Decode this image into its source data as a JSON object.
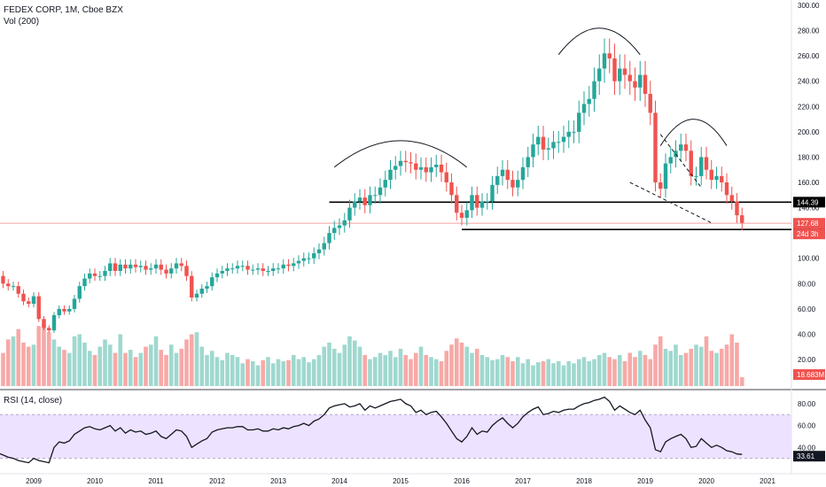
{
  "legend": {
    "symbol_line": "FEDEX CORP, 1M, Cboe BZX",
    "volume_line": "Vol (200)",
    "rsi_line": "RSI (14, close)"
  },
  "colors": {
    "up": "#26a69a",
    "down": "#ef5350",
    "vol_up": "#9fd8cf",
    "vol_down": "#f7a9a7",
    "rsi_band_fill": "#ede2ff",
    "rsi_line": "#131722",
    "level_line": "#000000",
    "price_line": "#f5a0a0"
  },
  "chart_data": [
    {
      "type": "candlestick",
      "title": "FEDEX CORP, 1M, Cboe BZX",
      "x_axis": {
        "tick_labels": [
          "2009",
          "2010",
          "2011",
          "2012",
          "2013",
          "2014",
          "2015",
          "2016",
          "2017",
          "2018",
          "2019",
          "2020",
          "2021"
        ],
        "tick_dates": [
          "2009-01",
          "2010-01",
          "2011-01",
          "2012-01",
          "2013-01",
          "2014-01",
          "2015-01",
          "2016-01",
          "2017-01",
          "2018-01",
          "2019-01",
          "2020-01",
          "2021-01"
        ]
      },
      "y_axis": {
        "ylim": [
          20,
          300
        ],
        "tick_labels": [
          "20.00",
          "40.00",
          "60.00",
          "80.00",
          "100.00",
          "120.00",
          "140.00",
          "160.00",
          "180.00",
          "200.00",
          "220.00",
          "240.00",
          "260.00",
          "280.00",
          "300.00"
        ],
        "tick_values": [
          20,
          40,
          60,
          80,
          100,
          120,
          140,
          160,
          180,
          200,
          220,
          240,
          260,
          280,
          300
        ]
      },
      "start_month": "2008-01",
      "close": [
        92,
        92,
        91,
        90,
        94,
        86,
        80,
        78,
        78,
        72,
        66,
        64,
        70,
        52,
        45,
        43,
        55,
        60,
        58,
        60,
        68,
        78,
        84,
        88,
        86,
        86,
        90,
        96,
        90,
        95,
        92,
        95,
        93,
        94,
        91,
        92,
        95,
        91,
        88,
        92,
        96,
        94,
        86,
        69,
        72,
        76,
        78,
        85,
        88,
        90,
        92,
        92,
        94,
        94,
        91,
        91,
        92,
        90,
        90,
        92,
        92,
        95,
        94,
        96,
        98,
        100,
        100,
        104,
        107,
        112,
        120,
        124,
        126,
        130,
        140,
        145,
        148,
        142,
        150,
        150,
        156,
        162,
        170,
        173,
        177,
        176,
        175,
        170,
        172,
        168,
        172,
        174,
        168,
        160,
        150,
        136,
        132,
        138,
        150,
        140,
        145,
        145,
        158,
        165,
        170,
        162,
        156,
        162,
        172,
        180,
        190,
        196,
        186,
        187,
        192,
        192,
        196,
        200,
        200,
        215,
        222,
        226,
        240,
        250,
        262,
        258,
        240,
        250,
        245,
        240,
        235,
        245,
        230,
        215,
        160,
        155,
        175,
        180,
        185,
        190,
        185,
        165,
        165,
        180,
        170,
        162,
        165,
        160,
        150,
        145,
        134,
        128
      ]
    },
    {
      "type": "bar",
      "title": "Vol (200)",
      "last_value_label": "18.683M",
      "tick_labels": [
        "40.00",
        "60.00"
      ],
      "tick_values": [
        40,
        60
      ],
      "values": [
        48,
        42,
        55,
        44,
        60,
        40,
        42,
        55,
        58,
        65,
        52,
        48,
        50,
        68,
        70,
        62,
        55,
        48,
        45,
        42,
        58,
        60,
        52,
        44,
        40,
        48,
        55,
        50,
        42,
        60,
        42,
        45,
        38,
        42,
        48,
        50,
        58,
        45,
        40,
        50,
        42,
        46,
        55,
        60,
        62,
        48,
        40,
        44,
        38,
        35,
        42,
        40,
        38,
        32,
        36,
        34,
        30,
        35,
        38,
        32,
        36,
        34,
        35,
        40,
        36,
        38,
        33,
        36,
        40,
        48,
        52,
        46,
        42,
        50,
        58,
        54,
        48,
        40,
        36,
        38,
        42,
        40,
        44,
        38,
        46,
        40,
        36,
        42,
        48,
        40,
        38,
        36,
        34,
        44,
        50,
        56,
        52,
        48,
        42,
        46,
        40,
        38,
        35,
        36,
        40,
        38,
        34,
        38,
        32,
        36,
        30,
        33,
        34,
        36,
        32,
        34,
        30,
        34,
        32,
        36,
        38,
        34,
        36,
        40,
        42,
        38,
        36,
        40,
        34,
        42,
        38,
        44,
        40,
        36,
        50,
        58,
        46,
        44,
        50,
        40,
        42,
        46,
        50,
        48,
        58,
        44,
        42,
        46,
        50,
        60,
        52,
        18.683
      ],
      "ylim": [
        10,
        75
      ]
    },
    {
      "type": "line",
      "title": "RSI (14, close)",
      "last_value_label": "33.61",
      "tick_labels": [
        "40.00",
        "60.00",
        "80.00"
      ],
      "tick_values": [
        40,
        60,
        80
      ],
      "band": [
        30,
        70
      ],
      "ylim": [
        20,
        88
      ],
      "values": [
        40,
        38,
        39,
        37,
        40,
        35,
        33,
        31,
        30,
        28,
        27,
        26,
        30,
        28,
        27,
        26,
        40,
        45,
        44,
        46,
        52,
        55,
        58,
        59,
        57,
        56,
        58,
        60,
        55,
        58,
        53,
        56,
        54,
        55,
        52,
        53,
        55,
        50,
        48,
        52,
        56,
        55,
        50,
        40,
        43,
        46,
        48,
        54,
        56,
        57,
        58,
        58,
        59,
        59,
        56,
        56,
        57,
        55,
        55,
        57,
        56,
        58,
        57,
        59,
        60,
        62,
        60,
        64,
        66,
        70,
        76,
        78,
        79,
        80,
        77,
        78,
        80,
        74,
        78,
        76,
        78,
        80,
        82,
        83,
        84,
        80,
        78,
        72,
        74,
        70,
        72,
        73,
        68,
        62,
        55,
        48,
        45,
        50,
        58,
        52,
        55,
        54,
        60,
        64,
        67,
        62,
        58,
        62,
        68,
        72,
        75,
        77,
        70,
        71,
        73,
        72,
        74,
        75,
        75,
        78,
        80,
        81,
        83,
        84,
        86,
        82,
        74,
        78,
        75,
        72,
        70,
        74,
        65,
        58,
        38,
        36,
        45,
        48,
        50,
        52,
        48,
        40,
        41,
        48,
        44,
        40,
        42,
        40,
        37,
        36,
        34,
        33.61
      ]
    }
  ],
  "drawings": {
    "levels": [
      {
        "value": 144.39,
        "label": "144.39",
        "from": "2013-11"
      },
      {
        "value": 122.78,
        "label": "122.78",
        "from": "2016-01"
      }
    ],
    "current_price": {
      "value": 127.68,
      "label": "127.68"
    },
    "countdown_label": "24d 3h",
    "arcs": [
      {
        "from": "2013-12",
        "to": "2016-02",
        "peak": 193
      },
      {
        "from": "2017-08",
        "to": "2018-12",
        "peak": 282
      },
      {
        "from": "2019-04",
        "to": "2020-05",
        "peak": 210
      }
    ],
    "wedge": [
      {
        "from": [
          "2019-04",
          198
        ],
        "to": [
          "2019-12",
          156
        ]
      },
      {
        "from": [
          "2018-10",
          160
        ],
        "to": [
          "2020-02",
          128
        ]
      }
    ]
  }
}
